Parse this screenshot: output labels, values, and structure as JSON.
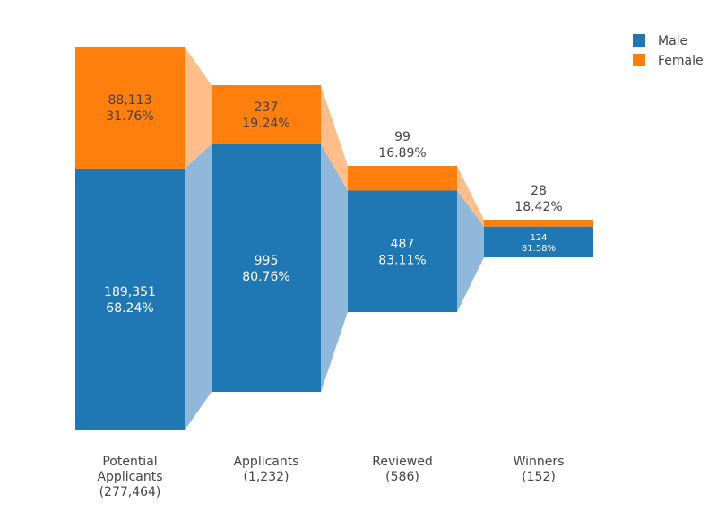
{
  "chart_data": {
    "type": "funnel",
    "title": "",
    "stages": [
      {
        "name_lines": [
          "Potential",
          "Applicants",
          "(277,464)"
        ],
        "total": 277464
      },
      {
        "name_lines": [
          "Applicants",
          "(1,232)"
        ],
        "total": 1232
      },
      {
        "name_lines": [
          "Reviewed",
          "(586)"
        ],
        "total": 586
      },
      {
        "name_lines": [
          "Winners",
          "(152)"
        ],
        "total": 152
      }
    ],
    "series": [
      {
        "name": "Male",
        "color": "#1f77b4",
        "connector_color": "#8fb8da",
        "values": [
          189351,
          995,
          487,
          124
        ],
        "value_labels": [
          "189,351",
          "995",
          "487",
          "124"
        ],
        "percent_labels": [
          "68.24%",
          "80.76%",
          "83.11%",
          "81.58%"
        ]
      },
      {
        "name": "Female",
        "color": "#ff7f0e",
        "connector_color": "#ffbe8a",
        "values": [
          88113,
          237,
          99,
          28
        ],
        "value_labels": [
          "88,113",
          "237",
          "99",
          "28"
        ],
        "percent_labels": [
          "31.76%",
          "19.24%",
          "16.89%",
          "18.42%"
        ]
      }
    ],
    "legend": {
      "position": "top-right",
      "entries": [
        "Male",
        "Female"
      ]
    },
    "grid": false
  }
}
